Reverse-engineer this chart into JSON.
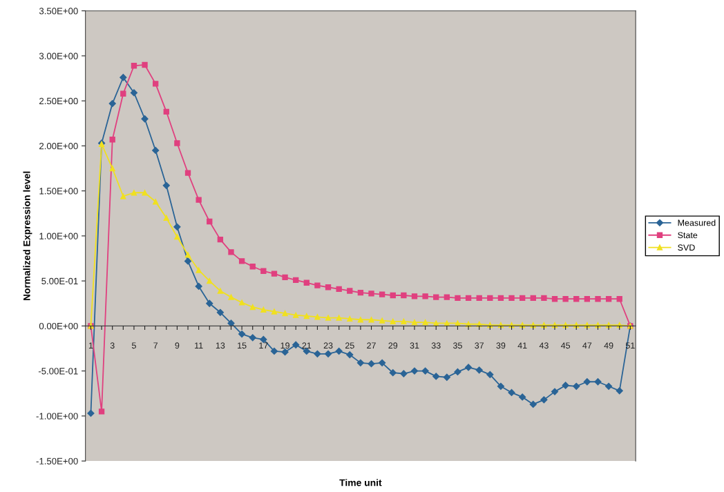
{
  "chart_data": {
    "type": "line",
    "xlabel": "Time unit",
    "ylabel": "Normalized Expression level",
    "categories": [
      "1",
      null,
      "3",
      null,
      "5",
      null,
      "7",
      null,
      "9",
      null,
      "11",
      null,
      "13",
      null,
      "15",
      null,
      "17",
      null,
      "19",
      null,
      "21",
      null,
      "23",
      null,
      "25",
      null,
      "27",
      null,
      "29",
      null,
      "31",
      null,
      "33",
      null,
      "35",
      null,
      "37",
      null,
      "39",
      null,
      "41",
      null,
      "43",
      null,
      "45",
      null,
      "47",
      null,
      "49",
      null,
      "51"
    ],
    "series": [
      {
        "name": "Measured",
        "color": "#2a6496",
        "marker": "diamond",
        "values": [
          -0.97,
          2.03,
          2.47,
          2.76,
          2.59,
          2.3,
          1.95,
          1.56,
          1.1,
          0.72,
          0.44,
          0.25,
          0.15,
          0.03,
          -0.09,
          -0.13,
          -0.15,
          -0.28,
          -0.29,
          -0.21,
          -0.28,
          -0.31,
          -0.31,
          -0.28,
          -0.32,
          -0.41,
          -0.42,
          -0.41,
          -0.52,
          -0.53,
          -0.5,
          -0.5,
          -0.56,
          -0.57,
          -0.51,
          -0.46,
          -0.49,
          -0.54,
          -0.67,
          -0.74,
          -0.79,
          -0.87,
          -0.82,
          -0.73,
          -0.66,
          -0.67,
          -0.62,
          -0.62,
          -0.67,
          -0.72,
          0.0
        ]
      },
      {
        "name": "State",
        "color": "#e0407f",
        "marker": "square",
        "values": [
          0.0,
          -0.95,
          2.07,
          2.58,
          2.89,
          2.9,
          2.69,
          2.38,
          2.03,
          1.7,
          1.4,
          1.16,
          0.96,
          0.82,
          0.72,
          0.66,
          0.61,
          0.58,
          0.54,
          0.51,
          0.48,
          0.45,
          0.43,
          0.41,
          0.39,
          0.37,
          0.36,
          0.35,
          0.34,
          0.34,
          0.33,
          0.33,
          0.32,
          0.32,
          0.31,
          0.31,
          0.31,
          0.31,
          0.31,
          0.31,
          0.31,
          0.31,
          0.31,
          0.3,
          0.3,
          0.3,
          0.3,
          0.3,
          0.3,
          0.3,
          0.0
        ]
      },
      {
        "name": "SVD",
        "color": "#f0e020",
        "marker": "triangle",
        "values": [
          0.0,
          2.02,
          1.75,
          1.44,
          1.48,
          1.48,
          1.38,
          1.2,
          0.99,
          0.79,
          0.62,
          0.5,
          0.39,
          0.32,
          0.26,
          0.21,
          0.18,
          0.16,
          0.14,
          0.12,
          0.11,
          0.1,
          0.09,
          0.09,
          0.08,
          0.07,
          0.07,
          0.06,
          0.05,
          0.05,
          0.04,
          0.04,
          0.03,
          0.03,
          0.03,
          0.02,
          0.02,
          0.01,
          0.01,
          0.01,
          0.01,
          0.01,
          0.01,
          0.01,
          0.01,
          0.01,
          0.01,
          0.01,
          0.01,
          0.01,
          0.0
        ]
      }
    ],
    "ylim": [
      -1.5,
      3.5
    ],
    "yticks": [
      {
        "value": -1.5,
        "label": "-1.50E+00"
      },
      {
        "value": -1.0,
        "label": "-1.00E+00"
      },
      {
        "value": -0.5,
        "label": "-5.00E-01"
      },
      {
        "value": 0,
        "label": "0.00E+00"
      },
      {
        "value": 0.5,
        "label": "5.00E-01"
      },
      {
        "value": 1.0,
        "label": "1.00E+00"
      },
      {
        "value": 1.5,
        "label": "1.50E+00"
      },
      {
        "value": 2.0,
        "label": "2.00E+00"
      },
      {
        "value": 2.5,
        "label": "2.50E+00"
      },
      {
        "value": 3.0,
        "label": "3.00E+00"
      },
      {
        "value": 3.5,
        "label": "3.50E+00"
      }
    ],
    "grid": false,
    "legend": "right",
    "line_style": "solid"
  }
}
